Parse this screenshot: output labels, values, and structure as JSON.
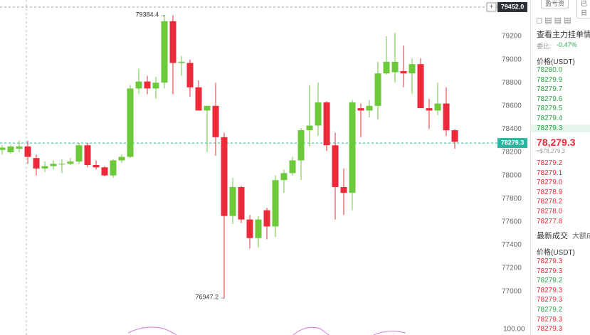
{
  "chart_data": {
    "type": "candlestick",
    "open": [
      78220,
      78200,
      78230,
      78250,
      78150,
      78060,
      78080,
      78100,
      78100,
      78120,
      78260,
      78090,
      78070,
      78000,
      78130,
      78160,
      78750,
      78810,
      78750,
      78800,
      79330,
      78970,
      78970,
      78760,
      78560,
      78600,
      78330,
      77650,
      77900,
      77620,
      77460,
      77700,
      77560,
      77960,
      78020,
      78130,
      78390,
      78430,
      78630,
      78260,
      77900,
      77850,
      78580,
      78560,
      78600,
      78880,
      78890,
      78900,
      78880,
      78960,
      78580,
      78560,
      78620,
      78390
    ],
    "high": [
      78260,
      78260,
      78300,
      78300,
      78180,
      78120,
      78130,
      78140,
      78150,
      78280,
      78280,
      78130,
      78080,
      78140,
      78180,
      78780,
      78920,
      78860,
      78850,
      79384.4,
      79380,
      79030,
      79000,
      78820,
      78600,
      78800,
      78370,
      77980,
      77910,
      77660,
      77650,
      77720,
      78000,
      78050,
      78160,
      78410,
      78780,
      78800,
      78640,
      78370,
      78060,
      78650,
      78620,
      78650,
      78980,
      79200,
      79230,
      79120,
      79010,
      79010,
      78660,
      78800,
      78760,
      78400
    ],
    "low": [
      78180,
      78190,
      78200,
      78100,
      78000,
      78030,
      78050,
      78020,
      78090,
      78100,
      78070,
      78050,
      77990,
      77980,
      78110,
      78150,
      78700,
      78700,
      78660,
      78750,
      78700,
      78860,
      78680,
      78560,
      78200,
      78170,
      76947.2,
      77580,
      77590,
      77370,
      77380,
      77450,
      77470,
      77850,
      78000,
      77960,
      78250,
      78340,
      78210,
      77620,
      77660,
      77700,
      78330,
      78500,
      78480,
      78870,
      78800,
      78760,
      78700,
      78600,
      78400,
      78520,
      78340,
      78230
    ],
    "close": [
      78240,
      78250,
      78250,
      78160,
      78060,
      78080,
      78100,
      78100,
      78120,
      78260,
      78090,
      78070,
      78000,
      78130,
      78160,
      78750,
      78810,
      78750,
      78800,
      79330,
      78970,
      78980,
      78760,
      78560,
      78600,
      78330,
      77650,
      77900,
      77620,
      77460,
      77620,
      77560,
      77960,
      78020,
      78130,
      78390,
      78430,
      78630,
      78260,
      77900,
      77850,
      78630,
      78560,
      78600,
      78880,
      78980,
      78980,
      78880,
      78960,
      78580,
      78560,
      78620,
      78390,
      78290
    ],
    "up_color": "#6cc93a",
    "down_color": "#ee2a3a",
    "ylim": [
      76722,
      79513
    ],
    "yticks": [
      79200,
      79000,
      78800,
      78600,
      78400,
      78200,
      78000,
      77800,
      77600,
      77400,
      77200,
      77000
    ],
    "last_price": 78279.3,
    "top_line": {
      "value": 79452,
      "label": "79452.0"
    },
    "indicator_label": "100.00"
  },
  "order_book": {
    "tabs": [
      "盈亏资",
      "已日"
    ],
    "title": "查看主力挂单情况",
    "ratio_label": "委比:",
    "ratio": "-0.47%",
    "price_header": "价格(USDT)",
    "asks": [
      "78280.0",
      "78279.9",
      "78279.7",
      "78279.6",
      "78279.5",
      "78279.4",
      "78279.3"
    ],
    "mid_price": "78,279.3",
    "mid_usd": "≈$78,279.3",
    "bids": [
      "78279.2",
      "78279.1",
      "78279.0",
      "78278.9",
      "78278.2",
      "78278.0",
      "78277.8"
    ]
  },
  "trades": {
    "tabs": [
      "最新成交",
      "大额成"
    ],
    "price_header": "价格(USDT)",
    "rows": [
      {
        "price": "78279.3",
        "side": "sell"
      },
      {
        "price": "78279.3",
        "side": "sell"
      },
      {
        "price": "78279.2",
        "side": "buy"
      },
      {
        "price": "78279.3",
        "side": "sell"
      },
      {
        "price": "78279.3",
        "side": "sell"
      },
      {
        "price": "78279.2",
        "side": "buy"
      },
      {
        "price": "78279.3",
        "side": "sell"
      },
      {
        "price": "78279.3",
        "side": "sell"
      }
    ]
  }
}
